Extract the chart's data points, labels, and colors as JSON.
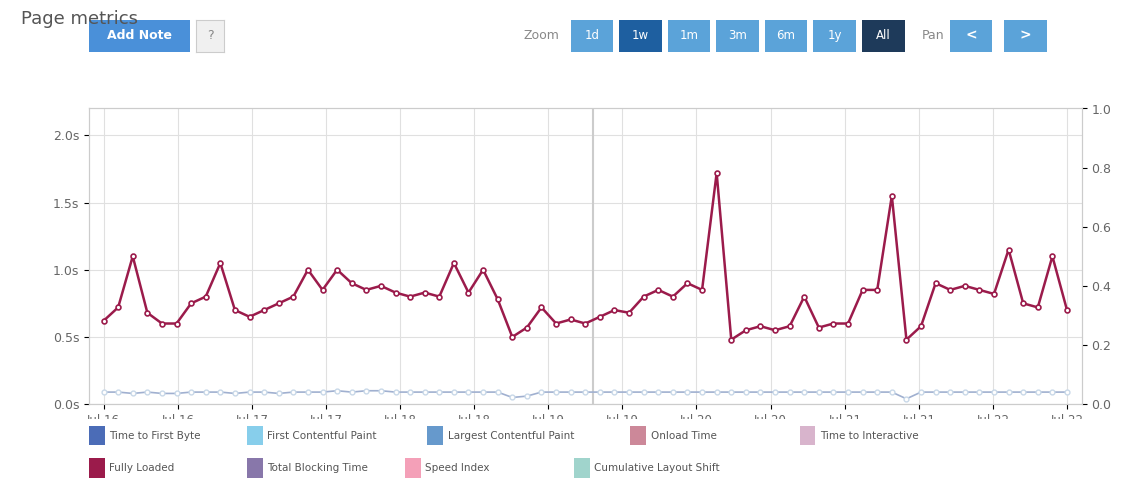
{
  "title": "Page metrics",
  "background_color": "#ffffff",
  "plot_bg_color": "#ffffff",
  "grid_color": "#e0e0e0",
  "fully_loaded": [
    0.62,
    0.72,
    1.1,
    0.68,
    0.6,
    0.6,
    0.75,
    0.8,
    1.05,
    0.7,
    0.65,
    0.7,
    0.75,
    0.8,
    1.0,
    0.85,
    1.0,
    0.9,
    0.85,
    0.88,
    0.83,
    0.8,
    0.83,
    0.8,
    1.05,
    0.83,
    1.0,
    0.78,
    0.5,
    0.57,
    0.72,
    0.6,
    0.63,
    0.6,
    0.65,
    0.7,
    0.68,
    0.8,
    0.85,
    0.8,
    0.9,
    0.85,
    1.72,
    0.48,
    0.55,
    0.58,
    0.55,
    0.58,
    0.8,
    0.57,
    0.6,
    0.6,
    0.85,
    0.85,
    1.55,
    0.48,
    0.58,
    0.9,
    0.85,
    0.88,
    0.85,
    0.82,
    1.15,
    0.75,
    0.72,
    1.1,
    0.7
  ],
  "ttfb": [
    0.09,
    0.09,
    0.08,
    0.09,
    0.08,
    0.08,
    0.09,
    0.09,
    0.09,
    0.08,
    0.09,
    0.09,
    0.08,
    0.09,
    0.09,
    0.09,
    0.1,
    0.09,
    0.1,
    0.1,
    0.09,
    0.09,
    0.09,
    0.09,
    0.09,
    0.09,
    0.09,
    0.09,
    0.05,
    0.06,
    0.09,
    0.09,
    0.09,
    0.09,
    0.09,
    0.09,
    0.09,
    0.09,
    0.09,
    0.09,
    0.09,
    0.09,
    0.09,
    0.09,
    0.09,
    0.09,
    0.09,
    0.09,
    0.09,
    0.09,
    0.09,
    0.09,
    0.09,
    0.09,
    0.09,
    0.04,
    0.09,
    0.09,
    0.09,
    0.09,
    0.09,
    0.09,
    0.09,
    0.09,
    0.09,
    0.09,
    0.09
  ],
  "fully_loaded_color": "#9b1b4b",
  "ttfb_color": "#a0b0d0",
  "ttfb_marker_color": "#c8d8e8",
  "left_ylim": [
    0,
    2.2
  ],
  "right_ylim": [
    0,
    1.0
  ],
  "left_yticks": [
    0.0,
    0.5,
    1.0,
    1.5,
    2.0
  ],
  "left_yticklabels": [
    "0.0s",
    "0.5s",
    "1.0s",
    "1.5s",
    "2.0s"
  ],
  "right_yticks": [
    0.0,
    0.2,
    0.4,
    0.6,
    0.8,
    1.0
  ],
  "tick_labels": [
    "Jul 16",
    "Jul 16",
    "Jul 17",
    "Jul 17",
    "Jul 18",
    "Jul 18",
    "Jul 19",
    "Jul 19",
    "Jul 20",
    "Jul 20",
    "Jul 21",
    "Jul 21",
    "Jul 22",
    "Jul 22"
  ],
  "divider_color": "#cccccc",
  "legend_row1": [
    {
      "label": "Time to First Byte",
      "color": "#4b6cb7"
    },
    {
      "label": "First Contentful Paint",
      "color": "#87ceeb"
    },
    {
      "label": "Largest Contentful Paint",
      "color": "#6699cc"
    },
    {
      "label": "Onload Time",
      "color": "#cc8899"
    },
    {
      "label": "Time to Interactive",
      "color": "#d8b4cc"
    }
  ],
  "legend_row2": [
    {
      "label": "Fully Loaded",
      "color": "#9b1b4b"
    },
    {
      "label": "Total Blocking Time",
      "color": "#8877aa"
    },
    {
      "label": "Speed Index",
      "color": "#f4a0b8"
    },
    {
      "label": "Cumulative Layout Shift",
      "color": "#a0d4cc"
    }
  ],
  "zoom_labels": [
    "1d",
    "1w",
    "1m",
    "3m",
    "6m",
    "1y",
    "All"
  ],
  "zoom_colors": [
    "#5ba3d9",
    "#1e5fa0",
    "#5ba3d9",
    "#5ba3d9",
    "#5ba3d9",
    "#5ba3d9",
    "#1e3a5a"
  ]
}
